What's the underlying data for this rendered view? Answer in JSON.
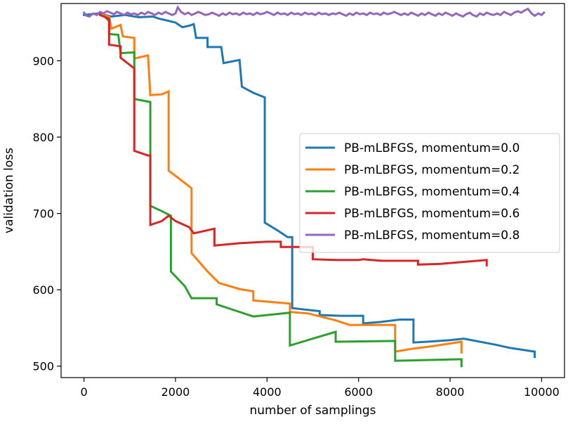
{
  "chart_data": {
    "type": "line",
    "title": "",
    "xlabel": "number of samplings",
    "ylabel": "validation loss",
    "xlim": [
      -500,
      10500
    ],
    "ylim": [
      485,
      975
    ],
    "xticks": [
      0,
      2000,
      4000,
      6000,
      8000,
      10000
    ],
    "yticks": [
      500,
      600,
      700,
      800,
      900
    ],
    "xtick_labels": [
      "0",
      "2000",
      "4000",
      "6000",
      "8000",
      "10000"
    ],
    "ytick_labels": [
      "500",
      "600",
      "700",
      "800",
      "900"
    ],
    "grid": false,
    "legend_position": "center-right",
    "series": [
      {
        "name": "PB-mLBFGS, momentum=0.0",
        "color": "#1f77b4",
        "points": [
          [
            0,
            960
          ],
          [
            300,
            962
          ],
          [
            600,
            958
          ],
          [
            900,
            960
          ],
          [
            1200,
            957
          ],
          [
            1500,
            958
          ],
          [
            1650,
            955
          ],
          [
            1800,
            953
          ],
          [
            2000,
            950
          ],
          [
            2150,
            944
          ],
          [
            2300,
            946
          ],
          [
            2400,
            948
          ],
          [
            2450,
            930
          ],
          [
            2700,
            930
          ],
          [
            2700,
            918
          ],
          [
            3000,
            918
          ],
          [
            3050,
            897
          ],
          [
            3400,
            901
          ],
          [
            3450,
            866
          ],
          [
            3700,
            858
          ],
          [
            3950,
            852
          ],
          [
            3950,
            688
          ],
          [
            4250,
            677
          ],
          [
            4450,
            669
          ],
          [
            4550,
            669
          ],
          [
            4550,
            576
          ],
          [
            5000,
            573
          ],
          [
            5150,
            572
          ],
          [
            5150,
            567
          ],
          [
            5600,
            566
          ],
          [
            6100,
            566
          ],
          [
            6100,
            556
          ],
          [
            6500,
            558
          ],
          [
            6900,
            561
          ],
          [
            7200,
            561
          ],
          [
            7200,
            531
          ],
          [
            7500,
            532
          ],
          [
            8000,
            534
          ],
          [
            8300,
            536
          ],
          [
            9000,
            528
          ],
          [
            9300,
            524
          ],
          [
            9850,
            519
          ],
          [
            9850,
            512
          ]
        ]
      },
      {
        "name": "PB-mLBFGS, momentum=0.2",
        "color": "#ff7f0e",
        "points": [
          [
            400,
            960
          ],
          [
            550,
            958
          ],
          [
            600,
            942
          ],
          [
            800,
            947
          ],
          [
            850,
            932
          ],
          [
            1100,
            930
          ],
          [
            1100,
            903
          ],
          [
            1400,
            907
          ],
          [
            1450,
            855
          ],
          [
            1700,
            856
          ],
          [
            1850,
            860
          ],
          [
            1850,
            756
          ],
          [
            2050,
            747
          ],
          [
            2350,
            733
          ],
          [
            2350,
            648
          ],
          [
            2700,
            624
          ],
          [
            2950,
            609
          ],
          [
            3400,
            601
          ],
          [
            3700,
            598
          ],
          [
            3700,
            586
          ],
          [
            4500,
            582
          ],
          [
            4500,
            571
          ],
          [
            4900,
            569
          ],
          [
            5500,
            560
          ],
          [
            5800,
            554
          ],
          [
            6800,
            554
          ],
          [
            6800,
            519
          ],
          [
            7200,
            523
          ],
          [
            7600,
            526
          ],
          [
            8250,
            532
          ],
          [
            8250,
            518
          ]
        ]
      },
      {
        "name": "PB-mLBFGS, momentum=0.4",
        "color": "#2ca02c",
        "points": [
          [
            450,
            958
          ],
          [
            550,
            952
          ],
          [
            550,
            935
          ],
          [
            750,
            934
          ],
          [
            800,
            910
          ],
          [
            1100,
            911
          ],
          [
            1100,
            850
          ],
          [
            1450,
            846
          ],
          [
            1450,
            710
          ],
          [
            1700,
            703
          ],
          [
            1900,
            697
          ],
          [
            1900,
            624
          ],
          [
            2200,
            605
          ],
          [
            2350,
            589
          ],
          [
            2900,
            589
          ],
          [
            2900,
            581
          ],
          [
            3300,
            573
          ],
          [
            3700,
            565
          ],
          [
            4500,
            570
          ],
          [
            4500,
            527
          ],
          [
            5000,
            536
          ],
          [
            5500,
            545
          ],
          [
            5500,
            532
          ],
          [
            6800,
            533
          ],
          [
            6800,
            507
          ],
          [
            8250,
            509
          ],
          [
            8250,
            500
          ]
        ]
      },
      {
        "name": "PB-mLBFGS, momentum=0.6",
        "color": "#d62728",
        "points": [
          [
            350,
            960
          ],
          [
            550,
            955
          ],
          [
            550,
            921
          ],
          [
            800,
            919
          ],
          [
            800,
            904
          ],
          [
            1100,
            890
          ],
          [
            1100,
            782
          ],
          [
            1400,
            776
          ],
          [
            1450,
            776
          ],
          [
            1450,
            685
          ],
          [
            1700,
            690
          ],
          [
            1850,
            697
          ],
          [
            2000,
            690
          ],
          [
            2300,
            682
          ],
          [
            2400,
            674
          ],
          [
            2850,
            680
          ],
          [
            2850,
            658
          ],
          [
            3400,
            661
          ],
          [
            4000,
            663
          ],
          [
            4300,
            663
          ],
          [
            4300,
            656
          ],
          [
            5000,
            656
          ],
          [
            5000,
            640
          ],
          [
            5500,
            639
          ],
          [
            6000,
            639
          ],
          [
            6100,
            640
          ],
          [
            6500,
            638
          ],
          [
            7300,
            638
          ],
          [
            7300,
            633
          ],
          [
            7800,
            634
          ],
          [
            8800,
            639
          ],
          [
            8800,
            632
          ]
        ]
      },
      {
        "name": "PB-mLBFGS, momentum=0.8",
        "color": "#9467bd",
        "points": [
          [
            0,
            963
          ],
          [
            60,
            959
          ],
          [
            120,
            958
          ],
          [
            200,
            962
          ],
          [
            280,
            960
          ],
          [
            350,
            964
          ],
          [
            430,
            962
          ],
          [
            500,
            965
          ],
          [
            580,
            963
          ],
          [
            650,
            961
          ],
          [
            720,
            964
          ],
          [
            800,
            962
          ],
          [
            880,
            960
          ],
          [
            950,
            963
          ],
          [
            1030,
            961
          ],
          [
            1100,
            962
          ],
          [
            1180,
            960
          ],
          [
            1250,
            963
          ],
          [
            1330,
            961
          ],
          [
            1400,
            964
          ],
          [
            1480,
            962
          ],
          [
            1550,
            960
          ],
          [
            1630,
            963
          ],
          [
            1700,
            961
          ],
          [
            1780,
            964
          ],
          [
            1850,
            962
          ],
          [
            1930,
            960
          ],
          [
            2000,
            962
          ],
          [
            2050,
            970
          ],
          [
            2120,
            964
          ],
          [
            2200,
            961
          ],
          [
            2280,
            963
          ],
          [
            2350,
            960
          ],
          [
            2430,
            962
          ],
          [
            2500,
            964
          ],
          [
            2580,
            962
          ],
          [
            2650,
            960
          ],
          [
            2730,
            961
          ],
          [
            2800,
            963
          ],
          [
            2880,
            961
          ],
          [
            2950,
            959
          ],
          [
            3030,
            962
          ],
          [
            3100,
            960
          ],
          [
            3180,
            963
          ],
          [
            3250,
            961
          ],
          [
            3330,
            962
          ],
          [
            3400,
            960
          ],
          [
            3480,
            963
          ],
          [
            3550,
            961
          ],
          [
            3630,
            962
          ],
          [
            3700,
            960
          ],
          [
            3780,
            963
          ],
          [
            3850,
            961
          ],
          [
            3930,
            962
          ],
          [
            4000,
            964
          ],
          [
            4080,
            962
          ],
          [
            4150,
            960
          ],
          [
            4230,
            963
          ],
          [
            4300,
            961
          ],
          [
            4380,
            962
          ],
          [
            4450,
            960
          ],
          [
            4530,
            963
          ],
          [
            4600,
            961
          ],
          [
            4680,
            962
          ],
          [
            4750,
            960
          ],
          [
            4830,
            963
          ],
          [
            4900,
            961
          ],
          [
            4980,
            962
          ],
          [
            5050,
            960
          ],
          [
            5130,
            963
          ],
          [
            5200,
            961
          ],
          [
            5280,
            962
          ],
          [
            5350,
            960
          ],
          [
            5430,
            962
          ],
          [
            5500,
            961
          ],
          [
            5580,
            963
          ],
          [
            5650,
            961
          ],
          [
            5730,
            959
          ],
          [
            5800,
            962
          ],
          [
            5880,
            960
          ],
          [
            5950,
            963
          ],
          [
            6030,
            961
          ],
          [
            6100,
            962
          ],
          [
            6180,
            960
          ],
          [
            6250,
            963
          ],
          [
            6330,
            961
          ],
          [
            6400,
            962
          ],
          [
            6480,
            960
          ],
          [
            6550,
            963
          ],
          [
            6630,
            961
          ],
          [
            6700,
            962
          ],
          [
            6780,
            964
          ],
          [
            6850,
            962
          ],
          [
            6930,
            960
          ],
          [
            7000,
            962
          ],
          [
            7080,
            960
          ],
          [
            7150,
            963
          ],
          [
            7230,
            961
          ],
          [
            7300,
            959
          ],
          [
            7380,
            962
          ],
          [
            7450,
            960
          ],
          [
            7530,
            963
          ],
          [
            7600,
            961
          ],
          [
            7680,
            959
          ],
          [
            7750,
            962
          ],
          [
            7830,
            960
          ],
          [
            7900,
            963
          ],
          [
            7980,
            961
          ],
          [
            8050,
            959
          ],
          [
            8130,
            962
          ],
          [
            8200,
            960
          ],
          [
            8280,
            958
          ],
          [
            8350,
            961
          ],
          [
            8430,
            963
          ],
          [
            8500,
            960
          ],
          [
            8580,
            958
          ],
          [
            8650,
            962
          ],
          [
            8730,
            960
          ],
          [
            8800,
            963
          ],
          [
            8880,
            961
          ],
          [
            8950,
            960
          ],
          [
            9030,
            962
          ],
          [
            9100,
            960
          ],
          [
            9180,
            964
          ],
          [
            9250,
            962
          ],
          [
            9330,
            960
          ],
          [
            9400,
            963
          ],
          [
            9480,
            965
          ],
          [
            9550,
            963
          ],
          [
            9630,
            966
          ],
          [
            9700,
            968
          ],
          [
            9780,
            962
          ],
          [
            9850,
            959
          ],
          [
            9930,
            962
          ],
          [
            10000,
            960
          ],
          [
            10050,
            963
          ]
        ]
      }
    ]
  }
}
